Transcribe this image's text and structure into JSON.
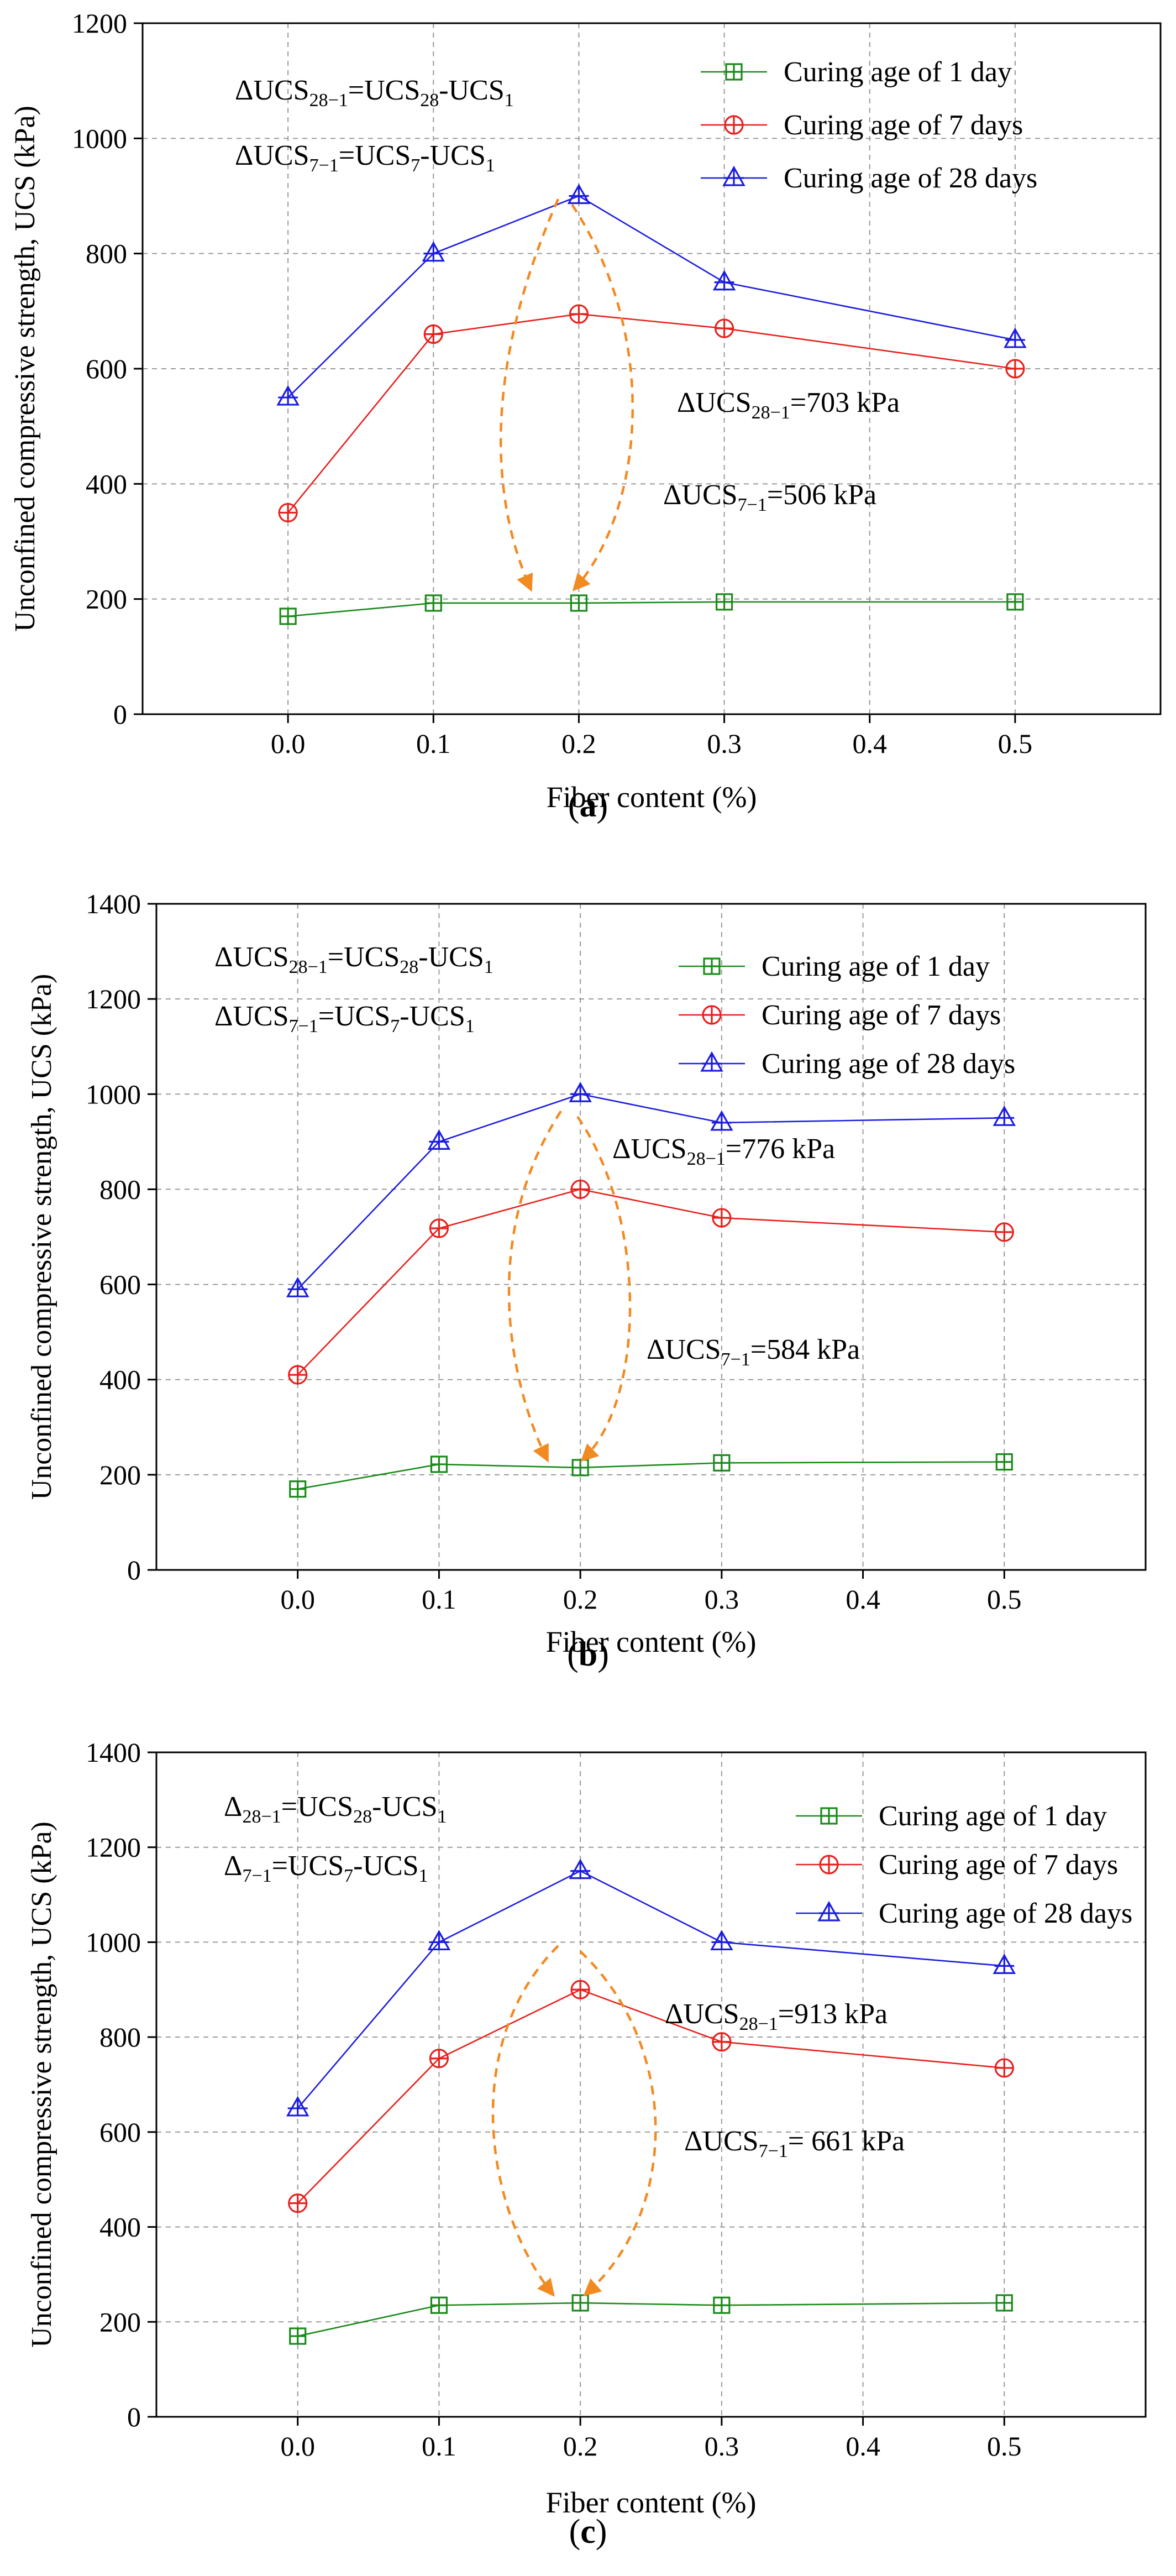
{
  "colors": {
    "series1": "#1a8a1a",
    "series7": "#e8201c",
    "series28": "#1c1ce0",
    "arrow": "#f28a22",
    "grid": "#9a9a9a"
  },
  "chart_data": [
    {
      "type": "line",
      "panel_label": "a",
      "title": "",
      "xlabel": "Fiber content (%)",
      "ylabel": "Unconfined compressive strength, UCS (kPa)",
      "xlim": [
        -0.1,
        0.6
      ],
      "ylim": [
        0,
        1200
      ],
      "xticks": [
        0.0,
        0.1,
        0.2,
        0.3,
        0.4,
        0.5
      ],
      "xtick_labels": [
        "0.0",
        "0.1",
        "0.2",
        "0.3",
        "0.4",
        "0.5"
      ],
      "yticks": [
        0,
        200,
        400,
        600,
        800,
        1000,
        1200
      ],
      "ytick_labels": [
        "0",
        "200",
        "400",
        "600",
        "800",
        "1000",
        "1200"
      ],
      "legend_position": "top-right",
      "series": [
        {
          "name": "Curing age of 1 day",
          "key": "series1",
          "marker": "square-plus",
          "x": [
            0.0,
            0.1,
            0.2,
            0.3,
            0.5
          ],
          "values": [
            170,
            193,
            193,
            195,
            195
          ]
        },
        {
          "name": "Curing age of 7 days",
          "key": "series7",
          "marker": "circle-plus",
          "x": [
            0.0,
            0.1,
            0.2,
            0.3,
            0.5
          ],
          "values": [
            350,
            660,
            695,
            670,
            600
          ]
        },
        {
          "name": "Curing age of 28 days",
          "key": "series28",
          "marker": "triangle-plus",
          "x": [
            0.0,
            0.1,
            0.2,
            0.3,
            0.5
          ],
          "values": [
            550,
            800,
            900,
            750,
            650
          ]
        }
      ],
      "formulas": [
        {
          "main": "ΔUCS",
          "sub": "28−1",
          "rest1": "=UCS",
          "sub2": "28",
          "rest2": "-UCS",
          "sub3": "1"
        },
        {
          "main": "ΔUCS",
          "sub": "7−1",
          "rest1": "=UCS",
          "sub2": "7",
          "rest2": "-UCS",
          "sub3": "1"
        }
      ],
      "annotations": [
        {
          "main": "ΔUCS",
          "sub": "28−1",
          "rest": "=703 kPa"
        },
        {
          "main": "ΔUCS",
          "sub": "7−1",
          "rest": "=506 kPa"
        }
      ]
    },
    {
      "type": "line",
      "panel_label": "b",
      "title": "",
      "xlabel": "Fiber content (%)",
      "ylabel": "Unconfined compressive strength, UCS (kPa)",
      "xlim": [
        -0.1,
        0.6
      ],
      "ylim": [
        0,
        1400
      ],
      "xticks": [
        0.0,
        0.1,
        0.2,
        0.3,
        0.4,
        0.5
      ],
      "xtick_labels": [
        "0.0",
        "0.1",
        "0.2",
        "0.3",
        "0.4",
        "0.5"
      ],
      "yticks": [
        0,
        200,
        400,
        600,
        800,
        1000,
        1200,
        1400
      ],
      "ytick_labels": [
        "0",
        "200",
        "400",
        "600",
        "800",
        "1000",
        "1200",
        "1400"
      ],
      "legend_position": "top-right",
      "series": [
        {
          "name": "Curing age of 1 day",
          "key": "series1",
          "marker": "square-plus",
          "x": [
            0.0,
            0.1,
            0.2,
            0.3,
            0.5
          ],
          "values": [
            170,
            222,
            215,
            225,
            227
          ]
        },
        {
          "name": "Curing age of 7 days",
          "key": "series7",
          "marker": "circle-plus",
          "x": [
            0.0,
            0.1,
            0.2,
            0.3,
            0.5
          ],
          "values": [
            410,
            718,
            800,
            740,
            710
          ]
        },
        {
          "name": "Curing age of 28 days",
          "key": "series28",
          "marker": "triangle-plus",
          "x": [
            0.0,
            0.1,
            0.2,
            0.3,
            0.5
          ],
          "values": [
            590,
            900,
            1000,
            940,
            950
          ]
        }
      ],
      "formulas": [
        {
          "main": "ΔUCS",
          "sub": "28−1",
          "rest1": "=UCS",
          "sub2": "28",
          "rest2": "-UCS",
          "sub3": "1"
        },
        {
          "main": "ΔUCS",
          "sub": "7−1",
          "rest1": "=UCS",
          "sub2": "7",
          "rest2": "-UCS",
          "sub3": "1"
        }
      ],
      "annotations": [
        {
          "main": "ΔUCS",
          "sub": "28−1",
          "rest": "=776 kPa"
        },
        {
          "main": "ΔUCS",
          "sub": "7−1",
          "rest": "=584 kPa"
        }
      ]
    },
    {
      "type": "line",
      "panel_label": "c",
      "title": "",
      "xlabel": "Fiber content (%)",
      "ylabel": "Unconfined compressive strength, UCS (kPa)",
      "xlim": [
        -0.1,
        0.6
      ],
      "ylim": [
        0,
        1400
      ],
      "xticks": [
        0.0,
        0.1,
        0.2,
        0.3,
        0.4,
        0.5
      ],
      "xtick_labels": [
        "0.0",
        "0.1",
        "0.2",
        "0.3",
        "0.4",
        "0.5"
      ],
      "yticks": [
        0,
        200,
        400,
        600,
        800,
        1000,
        1200,
        1400
      ],
      "ytick_labels": [
        "0",
        "200",
        "400",
        "600",
        "800",
        "1000",
        "1200",
        "1400"
      ],
      "legend_position": "top-right",
      "series": [
        {
          "name": "Curing age of 1 day",
          "key": "series1",
          "marker": "square-plus",
          "x": [
            0.0,
            0.1,
            0.2,
            0.3,
            0.5
          ],
          "values": [
            170,
            235,
            240,
            235,
            240
          ]
        },
        {
          "name": "Curing age of 7 days",
          "key": "series7",
          "marker": "circle-plus",
          "x": [
            0.0,
            0.1,
            0.2,
            0.3,
            0.5
          ],
          "values": [
            450,
            755,
            900,
            790,
            735
          ]
        },
        {
          "name": "Curing age of 28 days",
          "key": "series28",
          "marker": "triangle-plus",
          "x": [
            0.0,
            0.1,
            0.2,
            0.3,
            0.5
          ],
          "values": [
            650,
            1000,
            1150,
            1000,
            950
          ]
        }
      ],
      "formulas": [
        {
          "main": "Δ",
          "sub": "28−1",
          "rest1": "=UCS",
          "sub2": "28",
          "rest2": "-UCS",
          "sub3": "1"
        },
        {
          "main": "Δ",
          "sub": "7−1",
          "rest1": "=UCS",
          "sub2": "7",
          "rest2": "-UCS",
          "sub3": "1"
        }
      ],
      "annotations": [
        {
          "main": "ΔUCS",
          "sub": "28−1",
          "rest": "=913 kPa"
        },
        {
          "main": "ΔUCS",
          "sub": "7−1",
          "rest": "= 661 kPa"
        }
      ]
    }
  ]
}
